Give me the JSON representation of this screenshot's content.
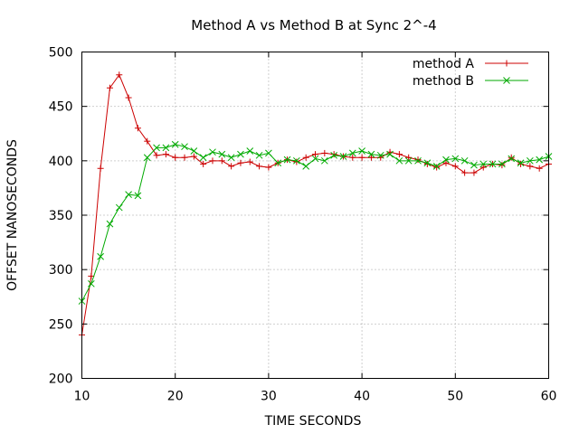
{
  "chart_data": {
    "type": "line",
    "title": "Method A vs Method B at Sync 2^-4",
    "xlabel": "TIME SECONDS",
    "ylabel": "OFFSET NANOSECONDS",
    "xlim": [
      10,
      60
    ],
    "ylim": [
      200,
      500
    ],
    "x_ticks": [
      10,
      20,
      30,
      40,
      50,
      60
    ],
    "y_ticks": [
      200,
      250,
      300,
      350,
      400,
      450,
      500
    ],
    "grid": true,
    "legend_position": "top-right",
    "x": [
      10,
      11,
      12,
      13,
      14,
      15,
      16,
      17,
      18,
      19,
      20,
      21,
      22,
      23,
      24,
      25,
      26,
      27,
      28,
      29,
      30,
      31,
      32,
      33,
      34,
      35,
      36,
      37,
      38,
      39,
      40,
      41,
      42,
      43,
      44,
      45,
      46,
      47,
      48,
      49,
      50,
      51,
      52,
      53,
      54,
      55,
      56,
      57,
      58,
      59,
      60
    ],
    "series": [
      {
        "name": "method A",
        "color": "#cc0000",
        "marker": "plus",
        "values": [
          240,
          294,
          393,
          467,
          479,
          458,
          430,
          418,
          405,
          406,
          403,
          403,
          404,
          397,
          400,
          400,
          395,
          398,
          399,
          395,
          394,
          398,
          401,
          399,
          403,
          406,
          407,
          406,
          404,
          403,
          403,
          403,
          403,
          408,
          406,
          403,
          401,
          397,
          394,
          398,
          395,
          389,
          389,
          394,
          397,
          396,
          403,
          397,
          395,
          393,
          397
        ]
      },
      {
        "name": "method B",
        "color": "#00aa00",
        "marker": "cross",
        "values": [
          271,
          287,
          312,
          342,
          357,
          369,
          368,
          403,
          412,
          412,
          415,
          413,
          409,
          403,
          408,
          406,
          403,
          406,
          409,
          405,
          407,
          398,
          401,
          400,
          395,
          402,
          400,
          405,
          404,
          407,
          409,
          406,
          405,
          406,
          400,
          400,
          400,
          398,
          395,
          401,
          402,
          400,
          396,
          397,
          397,
          397,
          402,
          398,
          400,
          401,
          404
        ]
      }
    ]
  }
}
